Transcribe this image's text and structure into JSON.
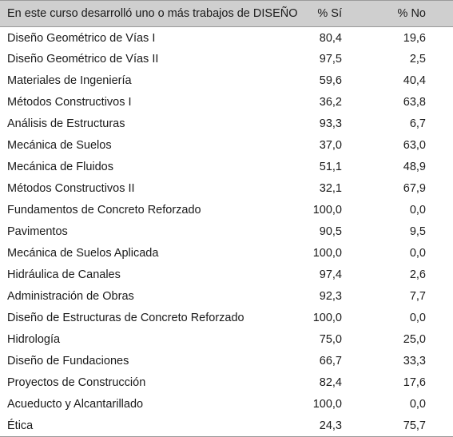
{
  "table": {
    "headers": {
      "course": "En este curso desarrolló uno o más trabajos de DISEÑO",
      "si": "% Sí",
      "no": "% No"
    },
    "rows": [
      {
        "course": "Diseño Geométrico de Vías I",
        "si": "80,4",
        "no": "19,6"
      },
      {
        "course": "Diseño Geométrico de Vías II",
        "si": "97,5",
        "no": "2,5"
      },
      {
        "course": "Materiales de Ingeniería",
        "si": "59,6",
        "no": "40,4"
      },
      {
        "course": "Métodos Constructivos I",
        "si": "36,2",
        "no": "63,8"
      },
      {
        "course": "Análisis de Estructuras",
        "si": "93,3",
        "no": "6,7"
      },
      {
        "course": "Mecánica de Suelos",
        "si": "37,0",
        "no": "63,0"
      },
      {
        "course": "Mecánica de Fluidos",
        "si": "51,1",
        "no": "48,9"
      },
      {
        "course": "Métodos Constructivos II",
        "si": "32,1",
        "no": "67,9"
      },
      {
        "course": "Fundamentos de Concreto Reforzado",
        "si": "100,0",
        "no": "0,0"
      },
      {
        "course": "Pavimentos",
        "si": "90,5",
        "no": "9,5"
      },
      {
        "course": "Mecánica de Suelos Aplicada",
        "si": "100,0",
        "no": "0,0"
      },
      {
        "course": "Hidráulica de Canales",
        "si": "97,4",
        "no": "2,6"
      },
      {
        "course": "Administración de Obras",
        "si": "92,3",
        "no": "7,7"
      },
      {
        "course": "Diseño de Estructuras de Concreto Reforzado",
        "si": "100,0",
        "no": "0,0"
      },
      {
        "course": "Hidrología",
        "si": "75,0",
        "no": "25,0"
      },
      {
        "course": "Diseño de Fundaciones",
        "si": "66,7",
        "no": "33,3"
      },
      {
        "course": "Proyectos de Construcción",
        "si": "82,4",
        "no": "17,6"
      },
      {
        "course": "Acueducto y Alcantarillado",
        "si": "100,0",
        "no": "0,0"
      },
      {
        "course": "Ética",
        "si": "24,3",
        "no": "75,7"
      }
    ]
  }
}
